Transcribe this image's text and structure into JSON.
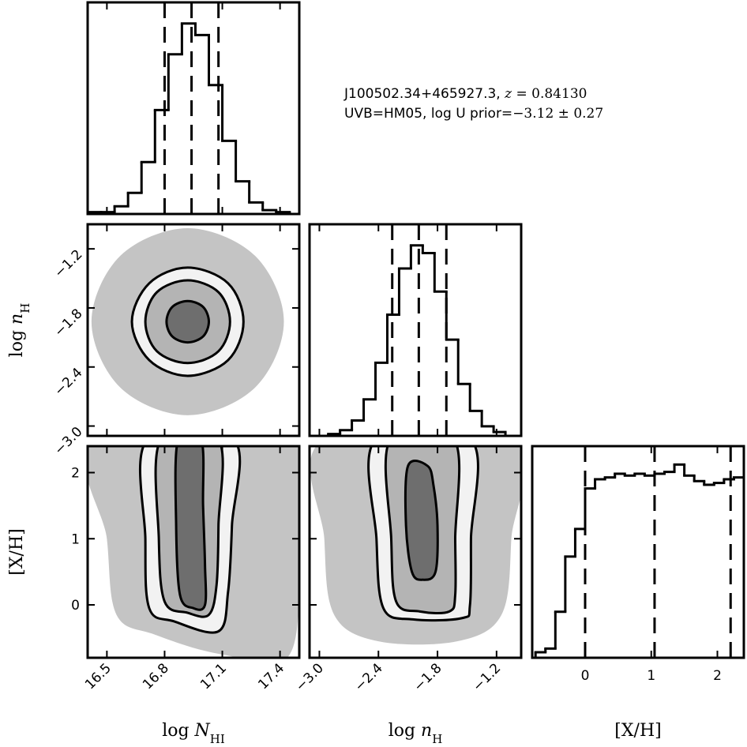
{
  "chart_data": {
    "type": "corner",
    "annotation": [
      [
        {
          "text": "J100502.34+465927.3, "
        },
        {
          "text": "z",
          "style": "math-italic"
        },
        {
          "text": " = 0.84130",
          "style": "math"
        }
      ],
      [
        {
          "text": "UVB=HM05, log U prior="
        },
        {
          "text": "−3.12 ± 0.27",
          "style": "math"
        }
      ]
    ],
    "axes": [
      {
        "label": [
          {
            "text": "log "
          },
          {
            "text": "N",
            "style": "italic"
          },
          {
            "text": "HI",
            "style": "sub"
          }
        ],
        "lim": [
          16.4,
          17.5
        ],
        "ticks": [
          16.5,
          16.8,
          17.1,
          17.4
        ],
        "tick_rotation": 45
      },
      {
        "label": [
          {
            "text": "log "
          },
          {
            "text": "n",
            "style": "italic"
          },
          {
            "text": "H",
            "style": "sub"
          }
        ],
        "lim": [
          -3.1,
          -0.95
        ],
        "ticks": [
          {
            "value": -3.0,
            "label": "−3.0"
          },
          {
            "value": -2.4,
            "label": "−2.4"
          },
          {
            "value": -1.8,
            "label": "−1.8"
          },
          {
            "value": -1.2,
            "label": "−1.2"
          }
        ],
        "tick_rotation": 45
      },
      {
        "label": [
          {
            "text": "[X/H]"
          }
        ],
        "lim": [
          -0.8,
          2.4
        ],
        "ticks": [
          0,
          1,
          2
        ],
        "tick_rotation": 0
      }
    ],
    "histograms": [
      {
        "axis": 0,
        "ylim": [
          0,
          1.1
        ],
        "bins": [
          16.4,
          16.47,
          16.54,
          16.61,
          16.68,
          16.75,
          16.82,
          16.89,
          16.96,
          17.03,
          17.1,
          17.17,
          17.24,
          17.31,
          17.38,
          17.45
        ],
        "values": [
          0.01,
          0.01,
          0.04,
          0.11,
          0.27,
          0.54,
          0.83,
          0.99,
          0.93,
          0.67,
          0.38,
          0.17,
          0.06,
          0.02,
          0.01
        ],
        "quantiles": [
          16.8,
          16.94,
          17.08
        ]
      },
      {
        "axis": 1,
        "ylim": [
          0,
          1.1
        ],
        "bins": [
          -3.15,
          -3.03,
          -2.91,
          -2.79,
          -2.67,
          -2.55,
          -2.43,
          -2.31,
          -2.19,
          -2.07,
          -1.95,
          -1.83,
          -1.71,
          -1.59,
          -1.47,
          -1.35,
          -1.23,
          -1.11,
          -0.99
        ],
        "values": [
          0.0,
          0.0,
          0.01,
          0.03,
          0.08,
          0.19,
          0.38,
          0.63,
          0.87,
          0.99,
          0.95,
          0.75,
          0.5,
          0.27,
          0.13,
          0.05,
          0.02,
          0.0
        ],
        "quantiles": [
          -2.26,
          -1.99,
          -1.71
        ]
      },
      {
        "axis": 2,
        "ylim": [
          0,
          1.15
        ],
        "bins": [
          -0.75,
          -0.6,
          -0.45,
          -0.3,
          -0.15,
          0,
          0.15,
          0.3,
          0.45,
          0.6,
          0.75,
          0.9,
          1.05,
          1.2,
          1.35,
          1.5,
          1.65,
          1.8,
          1.95,
          2.1,
          2.25,
          2.4
        ],
        "values": [
          0.03,
          0.05,
          0.25,
          0.55,
          0.7,
          0.92,
          0.97,
          0.98,
          1.0,
          0.99,
          1.0,
          0.99,
          1.0,
          1.01,
          1.05,
          0.99,
          0.96,
          0.94,
          0.95,
          0.97,
          0.98
        ],
        "quantiles": [
          0.0,
          1.05,
          2.2
        ]
      }
    ],
    "contour_fills": [
      "#c4c4c4",
      "#f2f2f2",
      "#b4b4b4",
      "#6e6e6e"
    ],
    "line_widths": [
      0,
      3,
      3,
      3
    ],
    "line_color": "#000000",
    "contours": [
      {
        "x_axis": 0,
        "y_axis": 1,
        "levels": [
          {
            "x": [
              17.42,
              17.27,
              16.92,
              16.57,
              16.42,
              16.57,
              16.92,
              17.27
            ],
            "y": [
              -1.94,
              -1.27,
              -0.99,
              -1.27,
              -1.94,
              -2.61,
              -2.89,
              -2.61
            ]
          },
          {
            "x": [
              17.21,
              17.13,
              16.92,
              16.72,
              16.63,
              16.72,
              16.92,
              17.13
            ],
            "y": [
              -1.94,
              -1.55,
              -1.39,
              -1.55,
              -1.94,
              -2.33,
              -2.49,
              -2.33
            ]
          },
          {
            "x": [
              17.14,
              17.08,
              16.92,
              16.76,
              16.7,
              16.76,
              16.92,
              17.08
            ],
            "y": [
              -1.94,
              -1.64,
              -1.52,
              -1.64,
              -1.94,
              -2.24,
              -2.36,
              -2.24
            ]
          },
          {
            "x": [
              17.03,
              17.0,
              16.92,
              16.84,
              16.81,
              16.84,
              16.92,
              17.0
            ],
            "y": [
              -1.94,
              -1.79,
              -1.73,
              -1.79,
              -1.94,
              -2.09,
              -2.15,
              -2.09
            ]
          }
        ]
      },
      {
        "x_axis": 0,
        "y_axis": 2,
        "levels": [
          {
            "x": [
              16.45,
              16.5,
              16.55,
              16.75,
              17.1,
              17.45,
              17.5,
              17.5
            ],
            "y": [
              2.5,
              1.0,
              -0.15,
              -0.45,
              -0.75,
              -0.75,
              1.0,
              2.5
            ]
          },
          {
            "x": [
              16.71,
              16.7,
              16.72,
              16.85,
              17.08,
              17.13,
              17.15,
              17.16
            ],
            "y": [
              2.5,
              1.0,
              -0.05,
              -0.25,
              -0.4,
              0.2,
              1.2,
              2.5
            ]
          },
          {
            "x": [
              16.78,
              16.77,
              16.8,
              16.92,
              17.03,
              17.07,
              17.08,
              17.08
            ],
            "y": [
              2.5,
              1.0,
              0.05,
              -0.12,
              -0.15,
              0.3,
              1.2,
              2.5
            ]
          },
          {
            "x": [
              16.87,
              16.86,
              16.88,
              16.95,
              17.01,
              17.01,
              17.0,
              16.99
            ],
            "y": [
              2.5,
              1.2,
              0.15,
              -0.05,
              0.0,
              0.6,
              1.5,
              2.5
            ]
          }
        ]
      },
      {
        "x_axis": 1,
        "y_axis": 2,
        "levels": [
          {
            "x": [
              -2.95,
              -2.95,
              -2.85,
              -2.4,
              -1.6,
              -1.15,
              -1.05,
              -1.05
            ],
            "y": [
              2.5,
              1.0,
              -0.15,
              -0.55,
              -0.55,
              -0.15,
              1.0,
              2.5
            ]
          },
          {
            "x": [
              -2.43,
              -2.42,
              -2.35,
              -2.05,
              -1.55,
              -1.47,
              -1.46,
              -1.46
            ],
            "y": [
              2.5,
              1.0,
              -0.05,
              -0.22,
              -0.2,
              0.0,
              1.0,
              2.5
            ]
          },
          {
            "x": [
              -2.28,
              -2.27,
              -2.22,
              -1.98,
              -1.68,
              -1.62,
              -1.62,
              -1.63
            ],
            "y": [
              2.5,
              1.0,
              0.05,
              -0.1,
              -0.1,
              0.15,
              1.0,
              2.5
            ]
          },
          {
            "x": [
              -2.1,
              -2.12,
              -2.06,
              -1.95,
              -1.82,
              -1.8,
              -1.84,
              -1.9
            ],
            "y": [
              2.1,
              1.2,
              0.5,
              0.38,
              0.5,
              1.2,
              1.8,
              2.1
            ]
          }
        ]
      }
    ]
  }
}
